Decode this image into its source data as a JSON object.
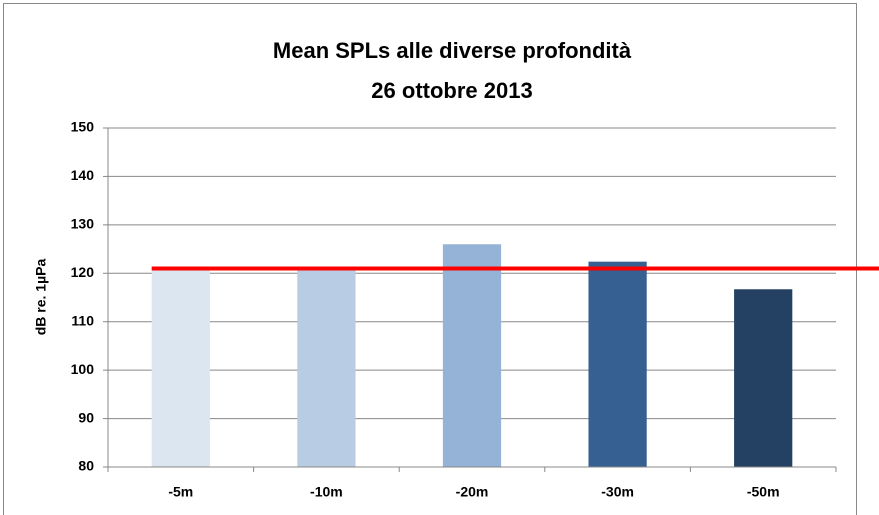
{
  "chart_data": {
    "type": "bar",
    "title": [
      "Mean SPLs alle diverse profondità",
      "26 ottobre 2013"
    ],
    "y_label": "dB re. 1µPa",
    "categories": [
      "-5m",
      "-10m",
      "-20m",
      "-30m",
      "-50m"
    ],
    "values": [
      120.7,
      121,
      126,
      122.4,
      116.7
    ],
    "colors": [
      "#dce6f1",
      "#b8cce4",
      "#95b3d7",
      "#366092",
      "#244062"
    ],
    "ylim": [
      80,
      150
    ],
    "yticks": [
      80,
      90,
      100,
      110,
      120,
      130,
      140,
      150
    ],
    "grid": true,
    "reference_line": {
      "value": 121,
      "color": "#ff0000"
    }
  }
}
